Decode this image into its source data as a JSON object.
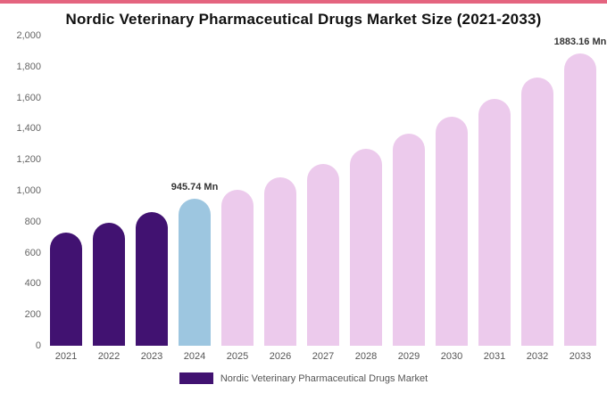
{
  "page": {
    "top_strip_color": "#e4647f"
  },
  "chart_data": {
    "type": "bar",
    "title": "Nordic Veterinary Pharmaceutical Drugs Market Size (2021-2033)",
    "categories": [
      "2021",
      "2022",
      "2023",
      "2024",
      "2025",
      "2026",
      "2027",
      "2028",
      "2029",
      "2030",
      "2031",
      "2032",
      "2033"
    ],
    "values": [
      731,
      795,
      860,
      945.74,
      1005,
      1085,
      1175,
      1270,
      1370,
      1480,
      1595,
      1730,
      1883.16
    ],
    "bar_colors": [
      "#411271",
      "#411271",
      "#411271",
      "#9dc6e0",
      "#eccaec",
      "#eccaec",
      "#eccaec",
      "#eccaec",
      "#eccaec",
      "#eccaec",
      "#eccaec",
      "#eccaec",
      "#eccaec"
    ],
    "ylim": [
      0,
      2000
    ],
    "yticks": [
      0,
      200,
      400,
      600,
      800,
      1000,
      1200,
      1400,
      1600,
      1800,
      2000
    ],
    "grid": false,
    "annotations": [
      {
        "index": 3,
        "text": "945.74 Mn"
      },
      {
        "index": 12,
        "text": "1883.16 Mn"
      }
    ],
    "legend": {
      "label": "Nordic Veterinary Pharmaceutical Drugs Market",
      "swatch_color": "#411271",
      "position": "bottom"
    }
  }
}
